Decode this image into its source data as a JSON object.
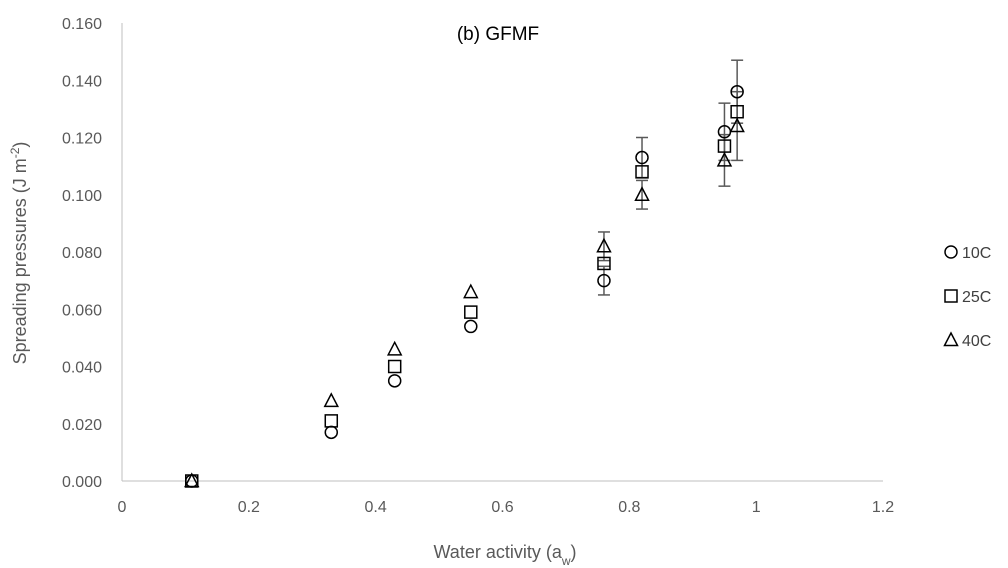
{
  "chart_data": {
    "type": "scatter",
    "title": "(b) GFMF",
    "xlabel_main": "Water activity (a",
    "xlabel_sub": "w",
    "xlabel_end": ")",
    "ylabel_main": "Spreading pressures (J m",
    "ylabel_sup": "-2",
    "ylabel_end": ")",
    "xlim": [
      0,
      1.2
    ],
    "ylim": [
      0,
      0.16
    ],
    "x_ticks": [
      0,
      0.2,
      0.4,
      0.6,
      0.8,
      1,
      1.2
    ],
    "x_tick_labels": [
      "0",
      "0.2",
      "0.4",
      "0.6",
      "0.8",
      "1",
      "1.2"
    ],
    "y_ticks": [
      0,
      0.02,
      0.04,
      0.06,
      0.08,
      0.1,
      0.12,
      0.14,
      0.16
    ],
    "y_tick_labels": [
      "0.000",
      "0.020",
      "0.040",
      "0.060",
      "0.080",
      "0.100",
      "0.120",
      "0.140",
      "0.160"
    ],
    "grid": false,
    "legend_position": "right",
    "series": [
      {
        "name": "10C",
        "marker": "circle",
        "points": [
          {
            "x": 0.11,
            "y": 0.0,
            "err": 0
          },
          {
            "x": 0.33,
            "y": 0.017,
            "err": 0
          },
          {
            "x": 0.43,
            "y": 0.035,
            "err": 0
          },
          {
            "x": 0.55,
            "y": 0.054,
            "err": 0
          },
          {
            "x": 0.76,
            "y": 0.07,
            "err": 0.005
          },
          {
            "x": 0.82,
            "y": 0.113,
            "err": 0.007
          },
          {
            "x": 0.95,
            "y": 0.122,
            "err": 0.01
          },
          {
            "x": 0.97,
            "y": 0.136,
            "err": 0.011
          }
        ]
      },
      {
        "name": "25C",
        "marker": "square",
        "points": [
          {
            "x": 0.11,
            "y": 0.0,
            "err": 0
          },
          {
            "x": 0.33,
            "y": 0.021,
            "err": 0
          },
          {
            "x": 0.43,
            "y": 0.04,
            "err": 0
          },
          {
            "x": 0.55,
            "y": 0.059,
            "err": 0
          },
          {
            "x": 0.76,
            "y": 0.076,
            "err": 0
          },
          {
            "x": 0.82,
            "y": 0.108,
            "err": 0
          },
          {
            "x": 0.95,
            "y": 0.117,
            "err": 0
          },
          {
            "x": 0.97,
            "y": 0.129,
            "err": 0
          }
        ]
      },
      {
        "name": "40C",
        "marker": "triangle",
        "points": [
          {
            "x": 0.11,
            "y": 0.0,
            "err": 0
          },
          {
            "x": 0.33,
            "y": 0.028,
            "err": 0
          },
          {
            "x": 0.43,
            "y": 0.046,
            "err": 0
          },
          {
            "x": 0.55,
            "y": 0.066,
            "err": 0
          },
          {
            "x": 0.76,
            "y": 0.082,
            "err": 0.005
          },
          {
            "x": 0.82,
            "y": 0.1,
            "err": 0.005
          },
          {
            "x": 0.95,
            "y": 0.112,
            "err": 0.009
          },
          {
            "x": 0.97,
            "y": 0.124,
            "err": 0.012
          }
        ]
      }
    ]
  }
}
